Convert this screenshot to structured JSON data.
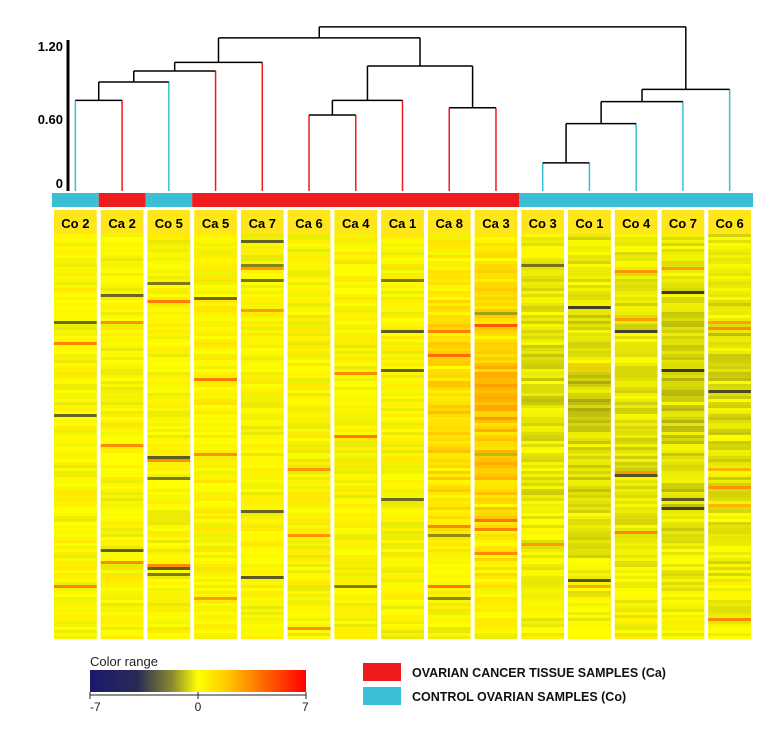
{
  "chart_data": {
    "type": "heatmap",
    "samples": [
      "Co 2",
      "Ca 2",
      "Co 5",
      "Ca 5",
      "Ca 7",
      "Ca 6",
      "Ca 4",
      "Ca 1",
      "Ca 8",
      "Ca 3",
      "Co 3",
      "Co 1",
      "Co 4",
      "Co 7",
      "Co 6"
    ],
    "groups": [
      "Co",
      "Ca",
      "Co",
      "Ca",
      "Ca",
      "Ca",
      "Ca",
      "Ca",
      "Ca",
      "Ca",
      "Co",
      "Co",
      "Co",
      "Co",
      "Co"
    ],
    "dendrogram_axis": {
      "ticks": [
        0,
        0.6,
        1.2
      ],
      "tick_labels": [
        "0",
        "0.60",
        "1.20"
      ]
    },
    "dendrogram_merges": [
      {
        "left": 10,
        "right": 11,
        "height": 0.23
      },
      {
        "left": "m0",
        "right": 12,
        "height": 0.55
      },
      {
        "left": "m1",
        "right": 13,
        "height": 0.73
      },
      {
        "left": "m2",
        "right": 14,
        "height": 0.83
      },
      {
        "left": 0,
        "right": 1,
        "height": 0.74
      },
      {
        "left": "m4",
        "right": 2,
        "height": 0.89
      },
      {
        "left": 5,
        "right": 6,
        "height": 0.62
      },
      {
        "left": "m6",
        "right": 7,
        "height": 0.74
      },
      {
        "left": 8,
        "right": 9,
        "height": 0.68
      },
      {
        "left": "m7",
        "right": "m8",
        "height": 1.02
      },
      {
        "left": "m5",
        "right": 3,
        "height": 0.98
      },
      {
        "left": "m10",
        "right": 4,
        "height": 1.05
      },
      {
        "left": "m11",
        "right": "m9",
        "height": 1.25
      },
      {
        "left": "m12",
        "right": "m3",
        "height": 1.34
      }
    ],
    "color_scale": {
      "title": "Color range",
      "min": -7,
      "mid": 0,
      "max": 7,
      "tick_labels": [
        "-7",
        "0",
        "7"
      ],
      "stops": [
        "#1a1a6e",
        "#ffff00",
        "#ff0000"
      ]
    },
    "legend": [
      {
        "label": "OVARIAN CANCER TISSUE SAMPLES (Ca)",
        "color": "#ee1c1c"
      },
      {
        "label": "CONTROL OVARIAN SAMPLES (Co)",
        "color": "#3cbfd4"
      }
    ],
    "group_colors": {
      "Ca": "#ee1c1c",
      "Co": "#3cbfd4"
    }
  }
}
